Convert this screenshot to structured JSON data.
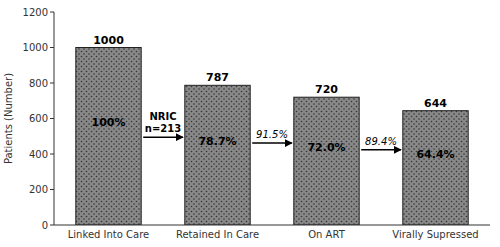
{
  "chart_data": {
    "type": "bar",
    "categories": [
      "Linked Into Care",
      "Retained In Care",
      "On ART",
      "Virally Supressed"
    ],
    "values": [
      1000,
      787,
      720,
      644
    ],
    "data_labels": true,
    "percentages": [
      100,
      78.7,
      72.0,
      64.4
    ],
    "percentage_labels": [
      "100%",
      "78.7%",
      "72.0%",
      "64.4%"
    ],
    "annotations": [
      "NRIC\nn=213",
      "91.5%",
      "89.4%"
    ],
    "color": "#888888",
    "y_label": "Patients (Number)",
    "ylim": [
      0,
      1200
    ],
    "yticks": [
      0,
      200,
      400,
      600,
      800,
      1000,
      1200
    ],
    "grid": false
  }
}
